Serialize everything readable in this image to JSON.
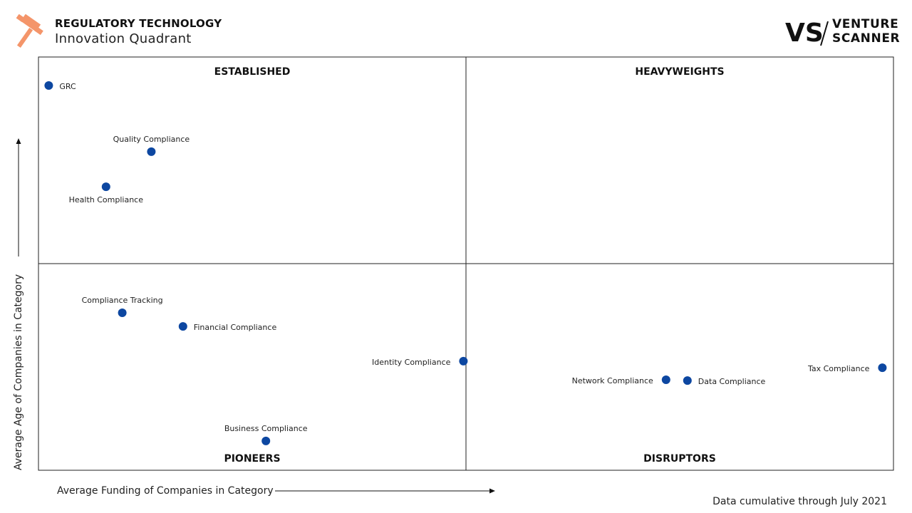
{
  "header": {
    "title": "REGULATORY TECHNOLOGY",
    "subtitle": "Innovation Quadrant",
    "icon": "gavel-icon",
    "icon_color": "#f4956a"
  },
  "brand": {
    "mark": "VS",
    "line1": "VENTURE",
    "line2": "SCANNER"
  },
  "footnote": "Data cumulative through July 2021",
  "chart_data": {
    "type": "scatter",
    "xlabel": "Average Funding of Companies in Category",
    "ylabel": "Average Age of Companies in Category",
    "xlim": [
      0,
      100
    ],
    "ylim": [
      0,
      100
    ],
    "quadrants": {
      "top_left": "ESTABLISHED",
      "top_right": "HEAVYWEIGHTS",
      "bottom_left": "PIONEERS",
      "bottom_right": "DISRUPTORS"
    },
    "dot_color": "#0d47a1",
    "points": [
      {
        "label": "GRC",
        "x": 1.2,
        "y": 93.1,
        "label_pos": "right"
      },
      {
        "label": "Quality Compliance",
        "x": 13.2,
        "y": 77.1,
        "label_pos": "above"
      },
      {
        "label": "Health Compliance",
        "x": 7.9,
        "y": 68.6,
        "label_pos": "below"
      },
      {
        "label": "Compliance Tracking",
        "x": 9.8,
        "y": 38.1,
        "label_pos": "above"
      },
      {
        "label": "Financial Compliance",
        "x": 16.9,
        "y": 34.8,
        "label_pos": "right"
      },
      {
        "label": "Identity Compliance",
        "x": 49.7,
        "y": 26.4,
        "label_pos": "left"
      },
      {
        "label": "Business Compliance",
        "x": 26.6,
        "y": 7.1,
        "label_pos": "above"
      },
      {
        "label": "Network Compliance",
        "x": 73.4,
        "y": 21.9,
        "label_pos": "left"
      },
      {
        "label": "Data Compliance",
        "x": 75.9,
        "y": 21.7,
        "label_pos": "right"
      },
      {
        "label": "Tax Compliance",
        "x": 98.7,
        "y": 24.8,
        "label_pos": "left"
      }
    ]
  }
}
